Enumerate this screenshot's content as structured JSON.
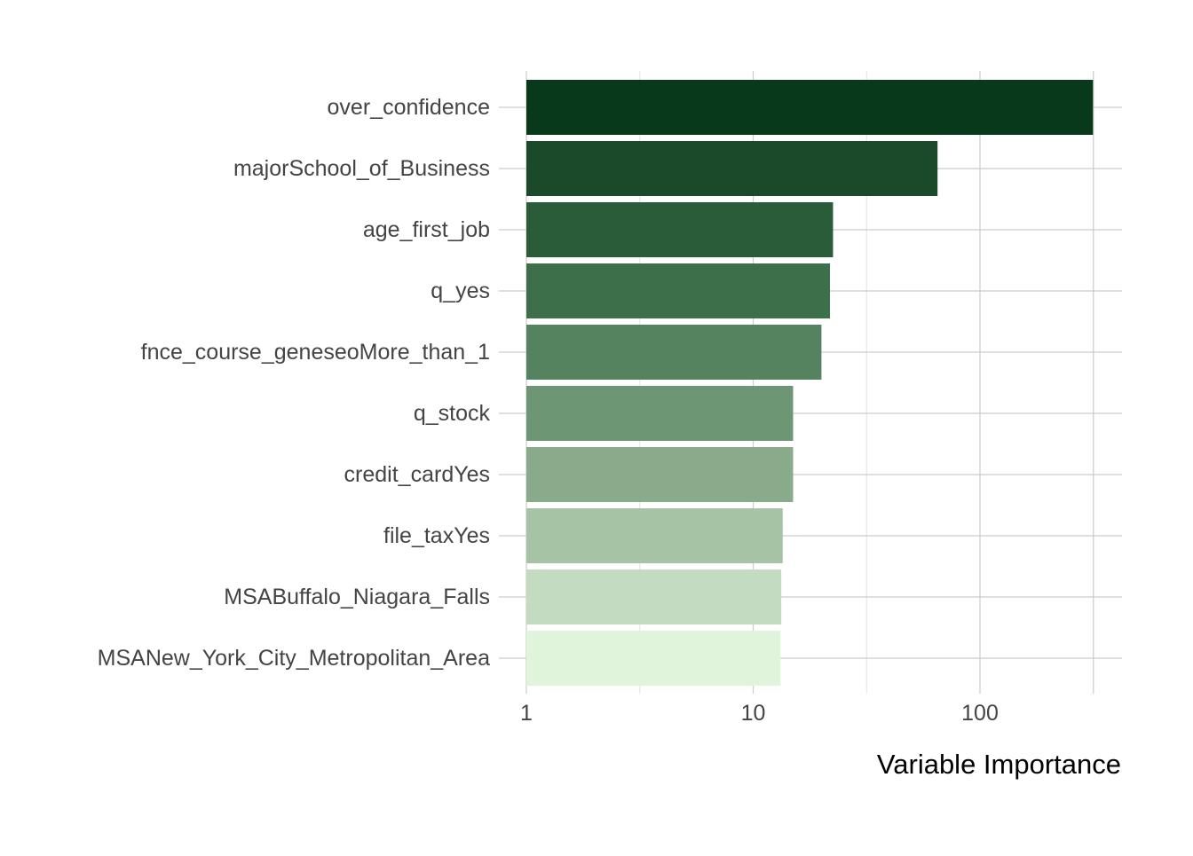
{
  "chart_data": {
    "type": "bar",
    "orientation": "horizontal",
    "title": "",
    "xlabel": "Variable Importance",
    "ylabel": "",
    "x_scale": "log10",
    "xlim": [
      1,
      400
    ],
    "x_ticks": [
      {
        "value": 1,
        "label": "1"
      },
      {
        "value": 10,
        "label": "10"
      },
      {
        "value": 100,
        "label": "100"
      }
    ],
    "grid": true,
    "legend": "none",
    "categories": [
      "over_confidence",
      "majorSchool_of_Business",
      "age_first_job",
      "q_yes",
      "fnce_course_geneseoMore_than_1",
      "q_stock",
      "credit_cardYes",
      "file_taxYes",
      "MSABuffalo_Niagara_Falls",
      "MSANew_York_City_Metropolitan_Area"
    ],
    "values": [
      315,
      65,
      22.5,
      21.8,
      20,
      15,
      15,
      13.5,
      13.3,
      13.2
    ],
    "colors": [
      "#08391a",
      "#1a4a29",
      "#2b5c39",
      "#3d6f4b",
      "#55835f",
      "#6d9675",
      "#89ab8c",
      "#a6c4a5",
      "#c3dcc1",
      "#e0f3db"
    ]
  }
}
